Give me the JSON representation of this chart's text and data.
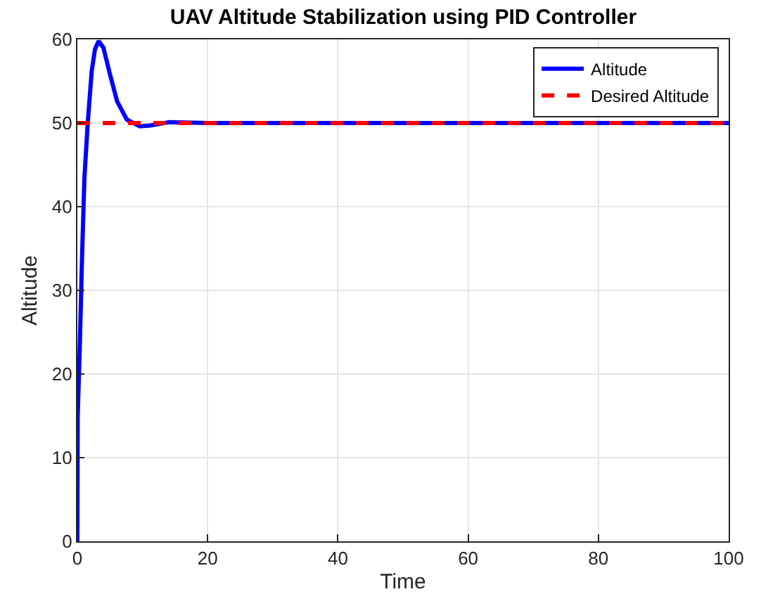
{
  "chart_data": {
    "type": "line",
    "title": "UAV Altitude Stabilization using PID Controller",
    "xlabel": "Time",
    "ylabel": "Altitude",
    "series": [
      {
        "name": "Altitude",
        "color": "#0000ff",
        "line_style": "solid",
        "x": [
          0,
          0.05,
          0.36,
          0.72,
          1.08,
          1.6,
          2.2,
          2.7,
          3.25,
          4,
          5.05,
          6.1,
          7.6,
          9.6,
          11.2,
          14.1,
          20,
          100
        ],
        "values": [
          0,
          15,
          22.9,
          34,
          43.4,
          50.1,
          56.2,
          58.8,
          59.8,
          59,
          55.7,
          52.6,
          50.4,
          49.6,
          49.7,
          50.1,
          50,
          50
        ]
      },
      {
        "name": "Desired Altitude",
        "color": "#ff0000",
        "line_style": "dashed",
        "x": [
          0,
          100
        ],
        "values": [
          50,
          50
        ]
      }
    ],
    "xlim": [
      0,
      100
    ],
    "ylim": [
      0,
      60
    ],
    "xticks": [
      0,
      20,
      40,
      60,
      80,
      100
    ],
    "yticks": [
      0,
      10,
      20,
      30,
      40,
      50,
      60
    ],
    "grid": true,
    "legend": "top right"
  }
}
